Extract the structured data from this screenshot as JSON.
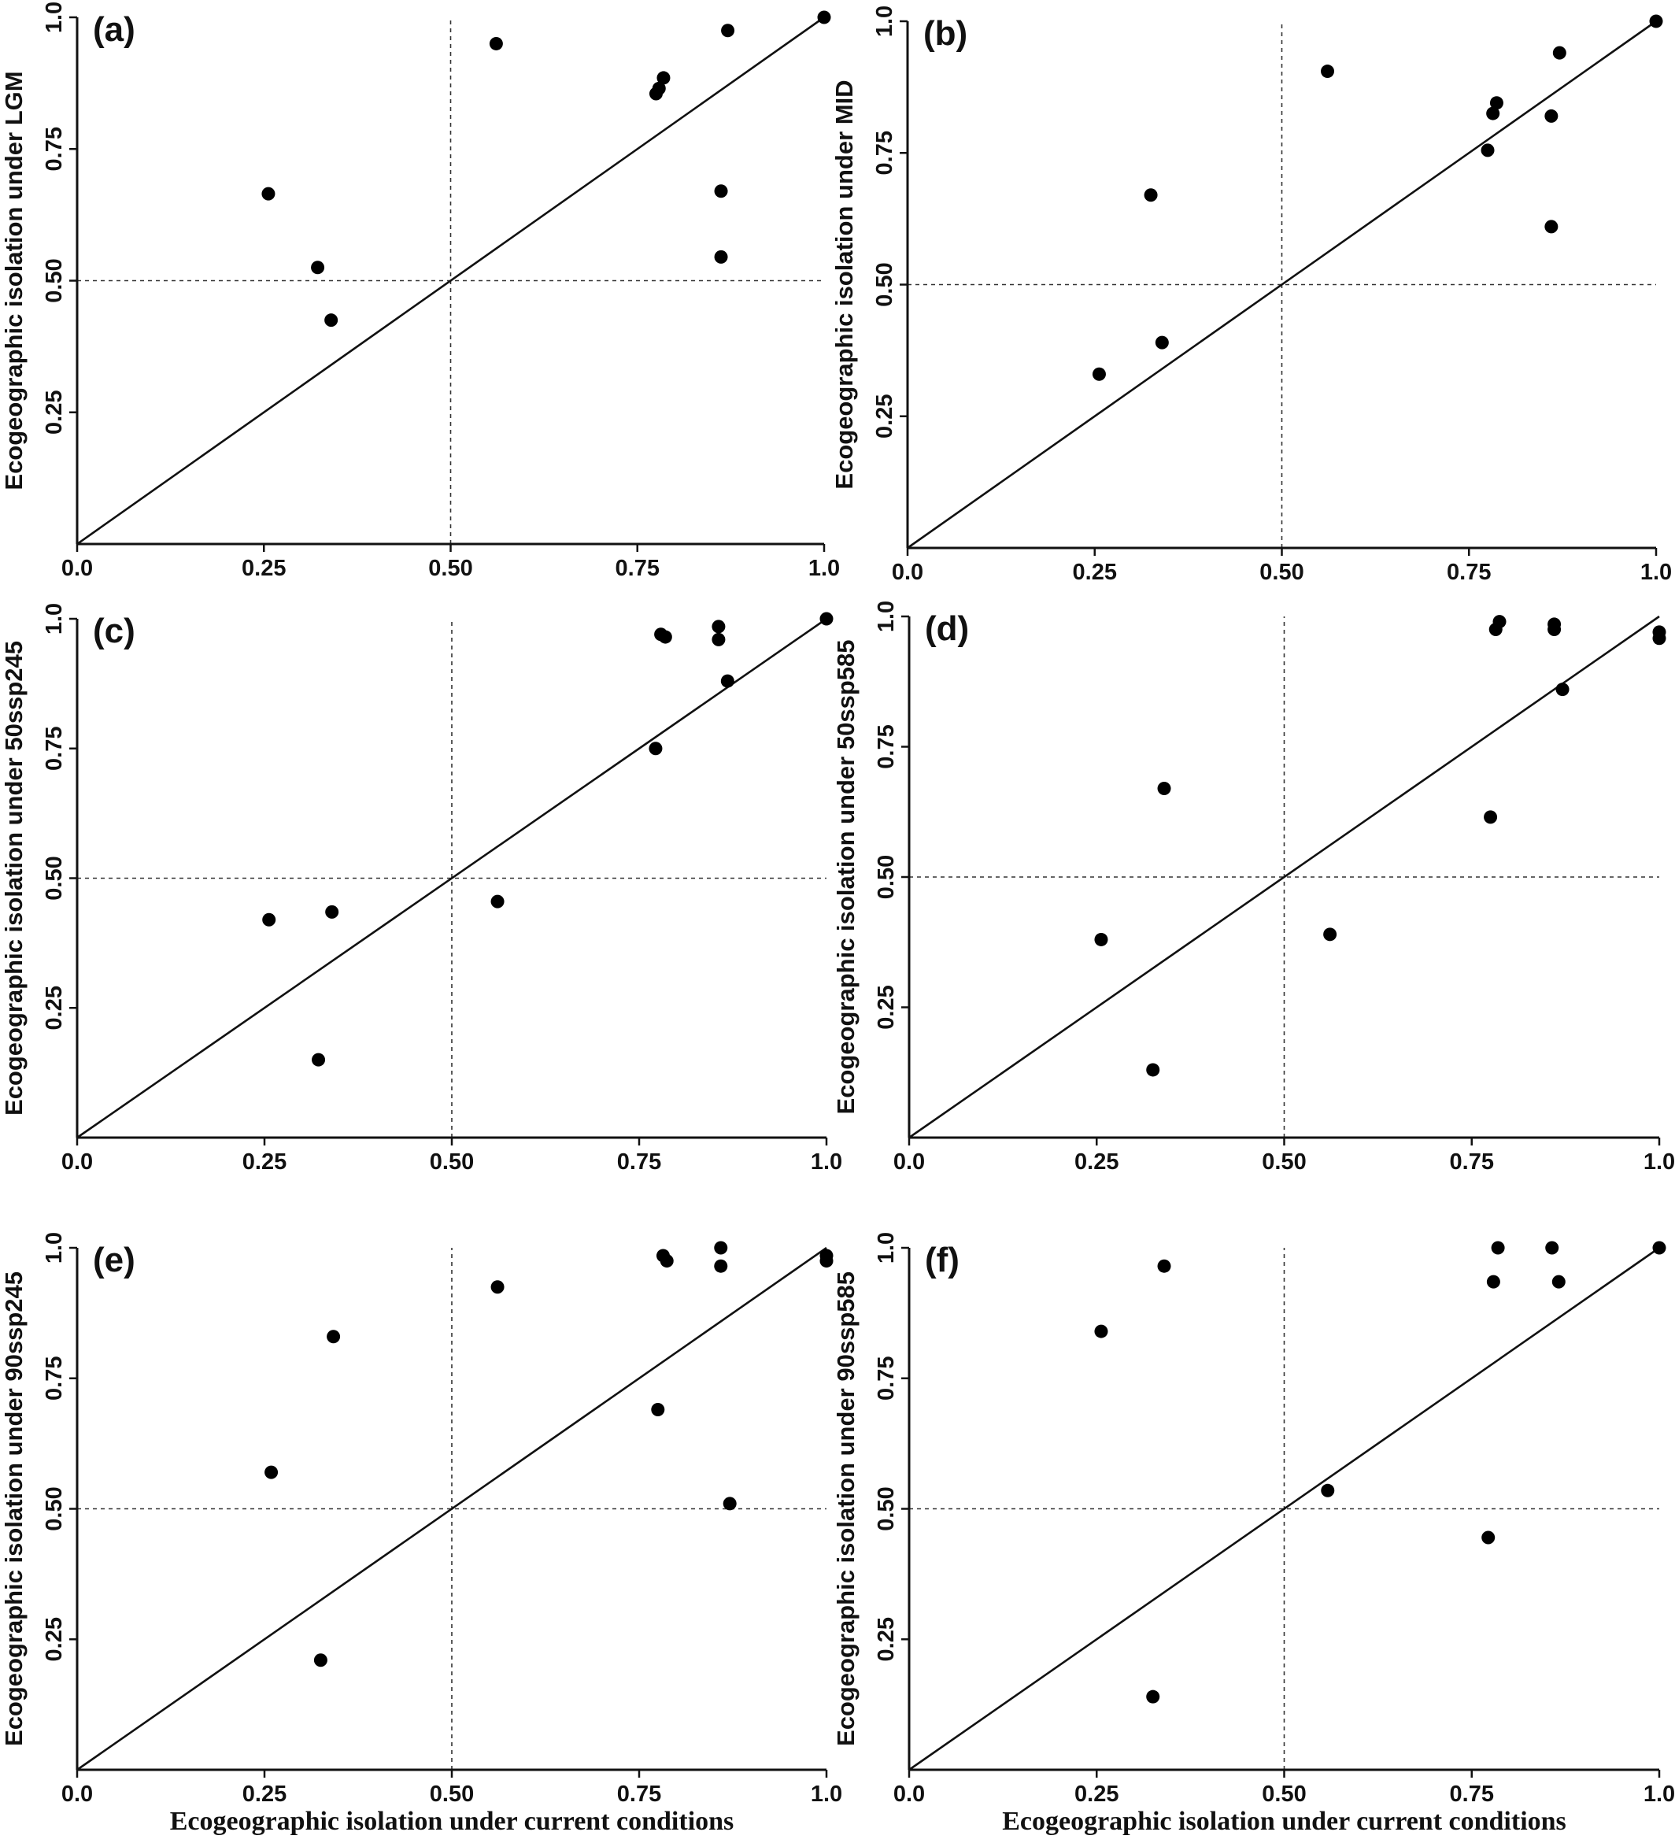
{
  "chart_data": [
    {
      "panel": "(a)",
      "type": "scatter",
      "xlabel": "",
      "ylabel": "Ecogeographic isolation under LGM",
      "xlim": [
        0,
        1
      ],
      "ylim": [
        0,
        1
      ],
      "xticks": [
        "0.0",
        "0.25",
        "0.50",
        "0.75",
        "1.0"
      ],
      "yticks": [
        "0.25",
        "0.50",
        "0.75",
        "1.0"
      ],
      "reference_line": "y = x",
      "dashed_lines": {
        "x": 0.5,
        "y": 0.5
      },
      "points": [
        {
          "x": 0.256,
          "y": 0.665
        },
        {
          "x": 0.322,
          "y": 0.525
        },
        {
          "x": 0.34,
          "y": 0.425
        },
        {
          "x": 0.561,
          "y": 0.95
        },
        {
          "x": 0.775,
          "y": 0.855
        },
        {
          "x": 0.779,
          "y": 0.865
        },
        {
          "x": 0.785,
          "y": 0.885
        },
        {
          "x": 0.862,
          "y": 0.67
        },
        {
          "x": 0.862,
          "y": 0.545
        },
        {
          "x": 0.871,
          "y": 0.975
        },
        {
          "x": 1.0,
          "y": 1.0
        }
      ]
    },
    {
      "panel": "(b)",
      "type": "scatter",
      "xlabel": "",
      "ylabel": "Ecogeographic isolation under MID",
      "xlim": [
        0,
        1
      ],
      "ylim": [
        0,
        1
      ],
      "xticks": [
        "0.0",
        "0.25",
        "0.50",
        "0.75",
        "1.0"
      ],
      "yticks": [
        "0.25",
        "0.50",
        "0.75",
        "1.0"
      ],
      "reference_line": "y = x",
      "dashed_lines": {
        "x": 0.5,
        "y": 0.5
      },
      "points": [
        {
          "x": 0.256,
          "y": 0.33
        },
        {
          "x": 0.325,
          "y": 0.67
        },
        {
          "x": 0.34,
          "y": 0.39
        },
        {
          "x": 0.561,
          "y": 0.905
        },
        {
          "x": 0.775,
          "y": 0.755
        },
        {
          "x": 0.782,
          "y": 0.825
        },
        {
          "x": 0.787,
          "y": 0.845
        },
        {
          "x": 0.86,
          "y": 0.82
        },
        {
          "x": 0.86,
          "y": 0.61
        },
        {
          "x": 0.871,
          "y": 0.94
        },
        {
          "x": 1.0,
          "y": 1.0
        }
      ]
    },
    {
      "panel": "(c)",
      "type": "scatter",
      "xlabel": "",
      "ylabel": "Ecogeographic isolation under 50ssp245",
      "xlim": [
        0,
        1
      ],
      "ylim": [
        0,
        1
      ],
      "xticks": [
        "0.0",
        "0.25",
        "0.50",
        "0.75",
        "1.0"
      ],
      "yticks": [
        "0.25",
        "0.50",
        "0.75",
        "1.0"
      ],
      "reference_line": "y = x",
      "dashed_lines": {
        "x": 0.5,
        "y": 0.5
      },
      "points": [
        {
          "x": 0.256,
          "y": 0.42
        },
        {
          "x": 0.322,
          "y": 0.15
        },
        {
          "x": 0.34,
          "y": 0.435
        },
        {
          "x": 0.561,
          "y": 0.455
        },
        {
          "x": 0.772,
          "y": 0.75
        },
        {
          "x": 0.779,
          "y": 0.97
        },
        {
          "x": 0.785,
          "y": 0.965
        },
        {
          "x": 0.856,
          "y": 0.985
        },
        {
          "x": 0.856,
          "y": 0.96
        },
        {
          "x": 0.868,
          "y": 0.88
        },
        {
          "x": 1.0,
          "y": 1.0
        }
      ]
    },
    {
      "panel": "(d)",
      "type": "scatter",
      "xlabel": "",
      "ylabel": "Ecogeographic isolation under 50ssp585",
      "xlim": [
        0,
        1
      ],
      "ylim": [
        0,
        1
      ],
      "xticks": [
        "0.0",
        "0.25",
        "0.50",
        "0.75",
        "1.0"
      ],
      "yticks": [
        "0.25",
        "0.50",
        "0.75",
        "1.0"
      ],
      "reference_line": "y = x",
      "dashed_lines": {
        "x": 0.5,
        "y": 0.5
      },
      "points": [
        {
          "x": 0.256,
          "y": 0.38
        },
        {
          "x": 0.325,
          "y": 0.13
        },
        {
          "x": 0.34,
          "y": 0.67
        },
        {
          "x": 0.561,
          "y": 0.39
        },
        {
          "x": 0.775,
          "y": 0.615
        },
        {
          "x": 0.782,
          "y": 0.975
        },
        {
          "x": 0.787,
          "y": 0.99
        },
        {
          "x": 0.86,
          "y": 0.985
        },
        {
          "x": 0.86,
          "y": 0.975
        },
        {
          "x": 0.871,
          "y": 0.86
        },
        {
          "x": 1.0,
          "y": 0.97
        },
        {
          "x": 1.0,
          "y": 0.958
        }
      ]
    },
    {
      "panel": "(e)",
      "type": "scatter",
      "xlabel": "Ecogeographic isolation under current conditions",
      "ylabel": "Ecogeographic isolation under 90ssp245",
      "xlim": [
        0,
        1
      ],
      "ylim": [
        0,
        1
      ],
      "xticks": [
        "0.0",
        "0.25",
        "0.50",
        "0.75",
        "1.0"
      ],
      "yticks": [
        "0.25",
        "0.50",
        "0.75",
        "1.0"
      ],
      "reference_line": "y = x",
      "dashed_lines": {
        "x": 0.5,
        "y": 0.5
      },
      "points": [
        {
          "x": 0.259,
          "y": 0.57
        },
        {
          "x": 0.325,
          "y": 0.21
        },
        {
          "x": 0.342,
          "y": 0.83
        },
        {
          "x": 0.561,
          "y": 0.925
        },
        {
          "x": 0.775,
          "y": 0.69
        },
        {
          "x": 0.782,
          "y": 0.985
        },
        {
          "x": 0.787,
          "y": 0.975
        },
        {
          "x": 0.859,
          "y": 1.0
        },
        {
          "x": 0.859,
          "y": 0.965
        },
        {
          "x": 0.871,
          "y": 0.51
        },
        {
          "x": 1.0,
          "y": 0.985
        },
        {
          "x": 1.0,
          "y": 0.975
        }
      ]
    },
    {
      "panel": "(f)",
      "type": "scatter",
      "xlabel": "Ecogeographic isolation under current conditions",
      "ylabel": "Ecogeographic isolation under 90ssp585",
      "xlim": [
        0,
        1
      ],
      "ylim": [
        0,
        1
      ],
      "xticks": [
        "0.0",
        "0.25",
        "0.50",
        "0.75",
        "1.0"
      ],
      "yticks": [
        "0.25",
        "0.50",
        "0.75",
        "1.0"
      ],
      "reference_line": "y = x",
      "dashed_lines": {
        "x": 0.5,
        "y": 0.5
      },
      "points": [
        {
          "x": 0.256,
          "y": 0.84
        },
        {
          "x": 0.325,
          "y": 0.14
        },
        {
          "x": 0.34,
          "y": 0.965
        },
        {
          "x": 0.558,
          "y": 0.535
        },
        {
          "x": 0.772,
          "y": 0.445
        },
        {
          "x": 0.779,
          "y": 0.935
        },
        {
          "x": 0.785,
          "y": 1.0
        },
        {
          "x": 0.857,
          "y": 1.0
        },
        {
          "x": 0.866,
          "y": 0.935
        },
        {
          "x": 1.0,
          "y": 1.0
        }
      ]
    }
  ]
}
